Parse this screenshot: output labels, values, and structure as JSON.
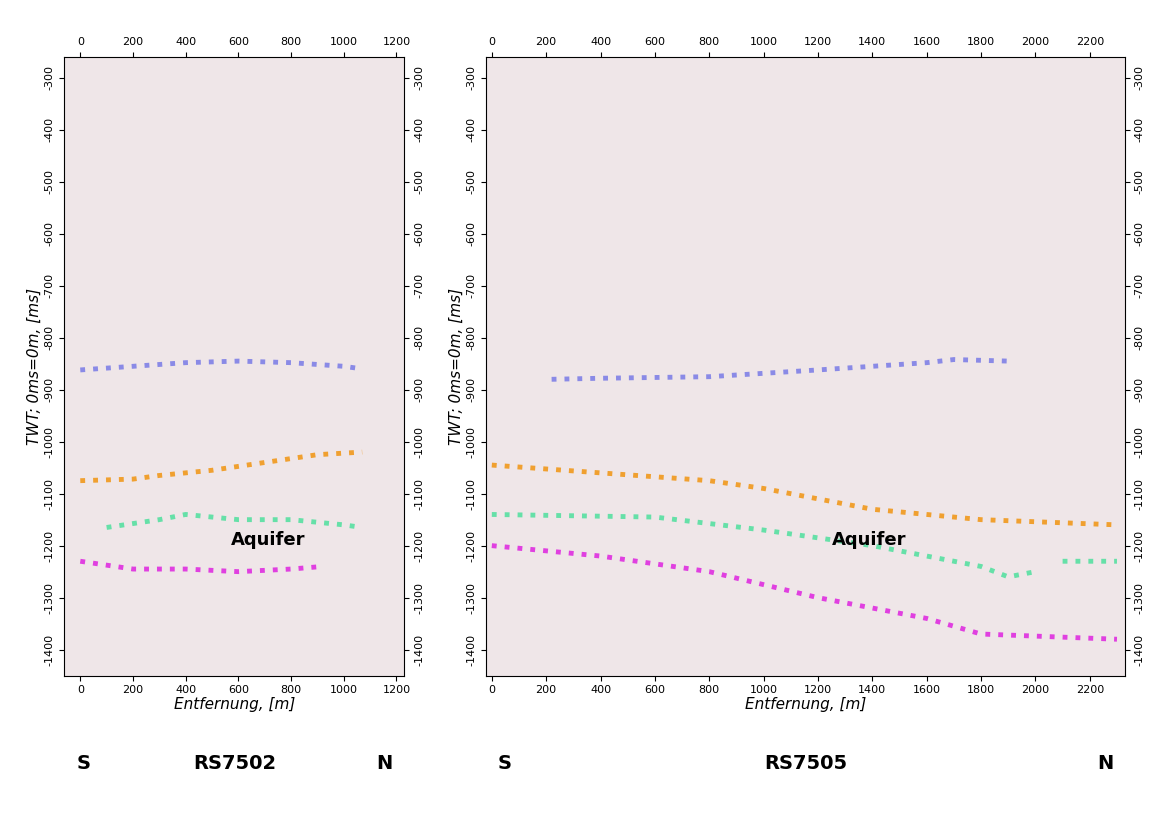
{
  "chart_data": [
    {
      "type": "line",
      "title": "RS7502",
      "direction_labels": [
        "S",
        "N"
      ],
      "x_label": "Entfernung, [m]",
      "y_label": "TWT; 0ms=0m, [ms]",
      "annotation": "Aquifer",
      "xlim": [
        -60,
        1230
      ],
      "xticks": [
        0,
        200,
        400,
        600,
        800,
        1000,
        1200
      ],
      "ylim": [
        -1450,
        -260
      ],
      "yticks": [
        -1400,
        -1300,
        -1200,
        -1100,
        -1000,
        -900,
        -800,
        -700,
        -600,
        -500,
        -400,
        -300
      ],
      "line_style": "dotted",
      "grid": false,
      "series": [
        {
          "color": "#8a8ae6",
          "x": [
            0,
            200,
            400,
            600,
            800,
            1000,
            1070
          ],
          "values": [
            -862,
            -855,
            -848,
            -845,
            -848,
            -855,
            -860
          ]
        },
        {
          "color": "#f0a030",
          "x": [
            0,
            200,
            300,
            500,
            700,
            900,
            1070
          ],
          "values": [
            -1075,
            -1072,
            -1065,
            -1055,
            -1040,
            -1025,
            -1020
          ]
        },
        {
          "color": "#66e0a8",
          "x": [
            100,
            300,
            400,
            500,
            600,
            800,
            1000,
            1070
          ],
          "values": [
            -1165,
            -1150,
            -1140,
            -1145,
            -1150,
            -1150,
            -1160,
            -1165
          ]
        },
        {
          "color": "#e040e0",
          "x": [
            0,
            200,
            400,
            600,
            800,
            920
          ],
          "values": [
            -1230,
            -1245,
            -1245,
            -1250,
            -1245,
            -1240
          ]
        }
      ]
    },
    {
      "type": "line",
      "title": "RS7505",
      "direction_labels": [
        "S",
        "N"
      ],
      "x_label": "Entfernung, [m]",
      "y_label": "TWT; 0ms=0m, [ms]",
      "annotation": "Aquifer",
      "xlim": [
        -20,
        2330
      ],
      "xticks": [
        0,
        200,
        400,
        600,
        800,
        1000,
        1200,
        1400,
        1600,
        1800,
        2000,
        2200
      ],
      "ylim": [
        -1450,
        -260
      ],
      "yticks": [
        -1400,
        -1300,
        -1200,
        -1100,
        -1000,
        -900,
        -800,
        -700,
        -600,
        -500,
        -400,
        -300
      ],
      "line_style": "dotted",
      "grid": false,
      "series": [
        {
          "color": "#8a8ae6",
          "x": [
            220,
            400,
            800,
            1200,
            1600,
            1700,
            1900
          ],
          "values": [
            -880,
            -878,
            -875,
            -862,
            -848,
            -842,
            -845
          ]
        },
        {
          "color": "#f0a030",
          "x": [
            0,
            400,
            800,
            1000,
            1400,
            1800,
            2300
          ],
          "values": [
            -1045,
            -1060,
            -1075,
            -1090,
            -1130,
            -1150,
            -1160
          ]
        },
        {
          "color": "#66e0a8",
          "x": [
            0,
            600,
            1000,
            1400,
            1800,
            1900,
            2000,
            2040,
            2100,
            2300
          ],
          "values": [
            -1140,
            -1145,
            -1170,
            -1200,
            -1240,
            -1260,
            -1250,
            null,
            -1230,
            -1230
          ]
        },
        {
          "color": "#e040e0",
          "x": [
            0,
            400,
            800,
            1200,
            1600,
            1800,
            2300
          ],
          "values": [
            -1200,
            -1220,
            -1250,
            -1300,
            -1340,
            -1370,
            -1380
          ]
        }
      ]
    }
  ]
}
